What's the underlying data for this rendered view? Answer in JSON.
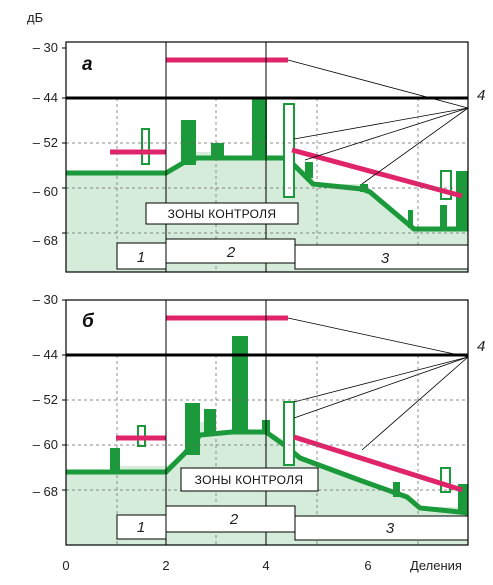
{
  "units": "дБ",
  "x_axis": {
    "title": "Деления",
    "ticks": [
      "0",
      "2",
      "4",
      "6"
    ]
  },
  "y_ticks": [
    "– 30",
    "– 44",
    "– 52",
    "– 60",
    "– 68"
  ],
  "zones_label": "ЗОНЫ КОНТРОЛЯ",
  "zone_numbers": [
    "1",
    "2",
    "3"
  ],
  "limit_line_label": "4",
  "panels": [
    {
      "letter": "а"
    },
    {
      "letter": "б"
    }
  ],
  "colors": {
    "trace": "#1a9a3a",
    "fill": "#d4ecd9",
    "limit": "#e0246a",
    "frame": "#000000"
  }
}
